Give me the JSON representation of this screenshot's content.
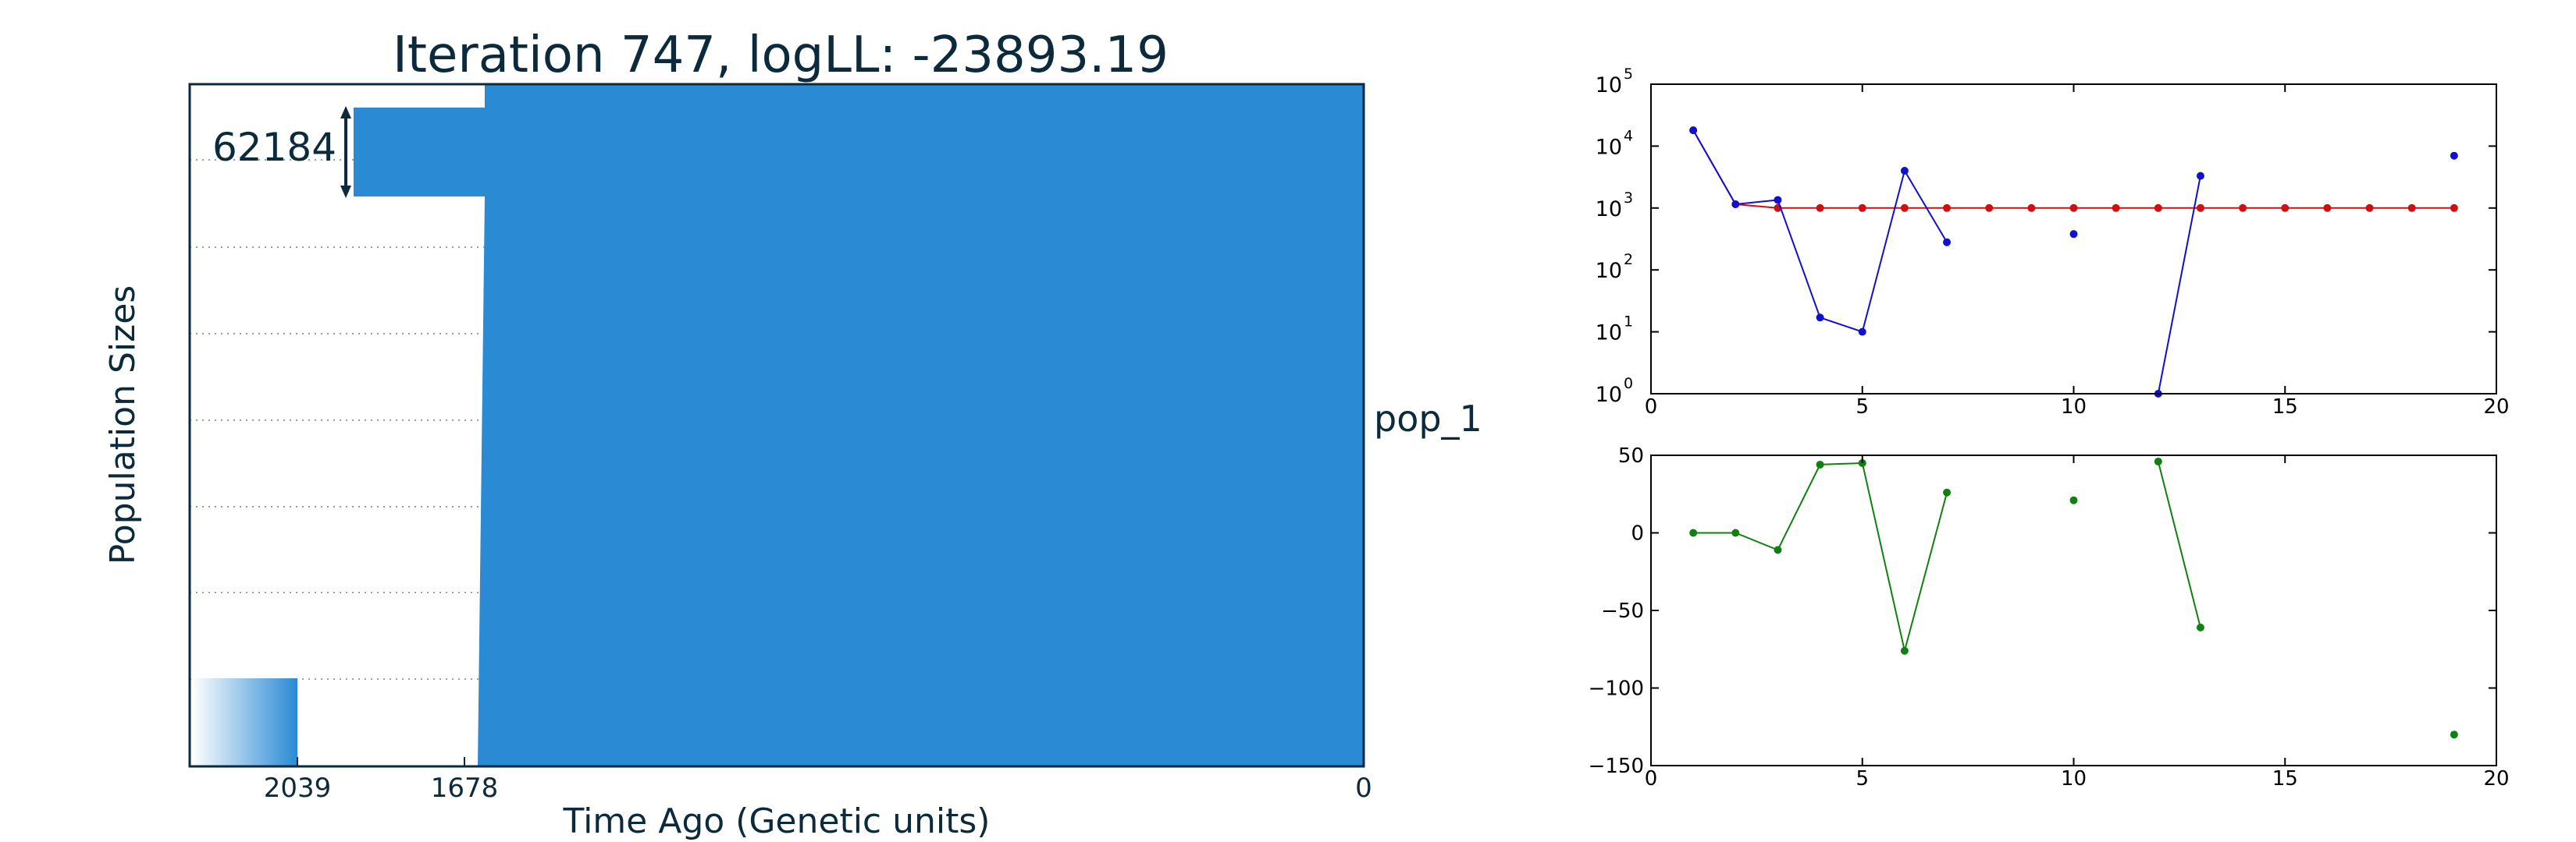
{
  "colors": {
    "text": "#0b2a3c",
    "population": "#2a8ad4",
    "red_series": "#d01010",
    "blue_series": "#1010d0",
    "green_series": "#108010",
    "grid_dots": "#9aa0a4"
  },
  "chart_data": [
    {
      "type": "area",
      "title": "Iteration 747, logLL:  -23893.19",
      "xlabel": "Time Ago (Genetic units)",
      "ylabel": "Population Sizes",
      "x_tick_labels": [
        "2039",
        "1678",
        "0"
      ],
      "scale_annotation": "62184",
      "population_label": "pop_1",
      "events": [
        {
          "time": 2039,
          "description": "gradient start"
        },
        {
          "time": 1678,
          "description": "size change"
        },
        {
          "time": 0,
          "description": "present"
        }
      ],
      "x_axis_direction": "reversed",
      "grid": "dotted-horizontal"
    },
    {
      "type": "line",
      "yscale": "log",
      "xlim": [
        0,
        20
      ],
      "ylim": [
        1,
        100000
      ],
      "x_ticks": [
        "0",
        "5",
        "10",
        "15",
        "20"
      ],
      "y_tick_base": "10",
      "y_tick_exponents": [
        "0",
        "1",
        "2",
        "3",
        "4",
        "5"
      ],
      "series": [
        {
          "color": "red",
          "points": [
            [
              1,
              18000
            ],
            [
              2,
              1150
            ],
            [
              3,
              1000
            ],
            [
              4,
              1000
            ],
            [
              5,
              1000
            ],
            [
              6,
              1000
            ],
            [
              7,
              1000
            ],
            [
              8,
              1000
            ],
            [
              9,
              1000
            ],
            [
              10,
              1000
            ],
            [
              11,
              1000
            ],
            [
              12,
              1000
            ],
            [
              13,
              1000
            ],
            [
              14,
              1000
            ],
            [
              15,
              1000
            ],
            [
              16,
              1000
            ],
            [
              17,
              1000
            ],
            [
              18,
              1000
            ],
            [
              19,
              1000
            ]
          ],
          "segments": [
            [
              0,
              18
            ]
          ]
        },
        {
          "color": "blue",
          "points": [
            [
              1,
              18000
            ],
            [
              2,
              1150
            ],
            [
              3,
              1350
            ],
            [
              4,
              17
            ],
            [
              5,
              10
            ],
            [
              6,
              4000
            ],
            [
              7,
              280
            ],
            [
              10,
              380
            ],
            [
              12,
              1
            ],
            [
              13,
              3300
            ],
            [
              19,
              7000
            ]
          ],
          "segments": [
            [
              0,
              6
            ],
            [
              8,
              9
            ]
          ]
        }
      ]
    },
    {
      "type": "line",
      "xlim": [
        0,
        20
      ],
      "ylim": [
        -150,
        50
      ],
      "x_ticks": [
        "0",
        "5",
        "10",
        "15",
        "20"
      ],
      "y_ticks": [
        "50",
        "0",
        "−50",
        "−100",
        "−150"
      ],
      "series": [
        {
          "color": "green",
          "points": [
            [
              1,
              0
            ],
            [
              2,
              0
            ],
            [
              3,
              -11
            ],
            [
              4,
              44
            ],
            [
              5,
              45
            ],
            [
              6,
              -76
            ],
            [
              7,
              26
            ],
            [
              10,
              21
            ],
            [
              12,
              46
            ],
            [
              13,
              -61
            ],
            [
              19,
              -130
            ]
          ],
          "segments": [
            [
              0,
              6
            ],
            [
              8,
              9
            ]
          ]
        }
      ]
    }
  ]
}
